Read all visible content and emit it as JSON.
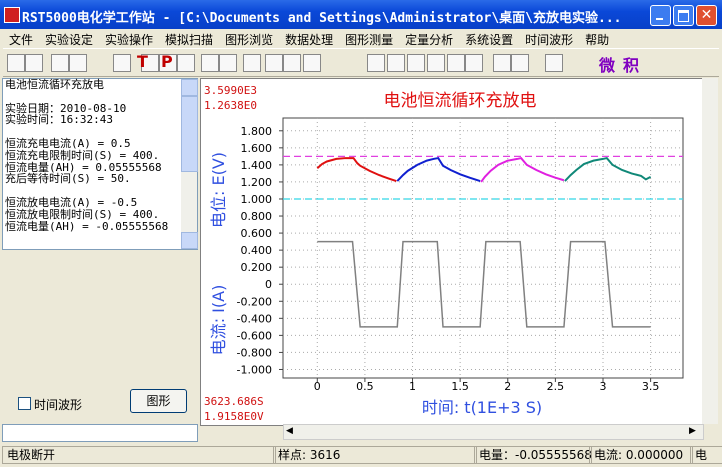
{
  "window": {
    "title": "RST5000电化学工作站 - [C:\\Documents and Settings\\Administrator\\桌面\\充放电实验..."
  },
  "menu": [
    "文件",
    "实验设定",
    "实验操作",
    "模拟扫描",
    "图形浏览",
    "数据处理",
    "图形测量",
    "定量分析",
    "系统设置",
    "时间波形",
    "帮助"
  ],
  "toolbar": {
    "labels": [
      "T",
      "P",
      "微",
      "积"
    ]
  },
  "panel": {
    "groups": [
      [
        "电池恒流循环充放电"
      ],
      [
        "实验日期：2010-08-10",
        "实验时间：16:32:43"
      ],
      [
        "恒流充电电流(A) = 0.5",
        "恒流充电限制时间(S) = 400.",
        "恒流电量(AH) = 0.05555568",
        "充后等待时间(S) = 50."
      ],
      [
        "恒流放电电流(A) = -0.5",
        "恒流放电限制时间(S) = 400.",
        "恒流电量(AH) = -0.05555568"
      ]
    ],
    "checkbox": "时间波形",
    "button": "图形"
  },
  "status": [
    "电极断开",
    "样点: 3616",
    "电量：-0.05555568",
    "电流: 0.000000",
    "电"
  ],
  "chart_data": {
    "type": "line",
    "title": "电池恒流循环充放电",
    "xlabel": "时间: t(1E+3 S)",
    "ylabel_top": "电位: E(V)",
    "ylabel_bottom": "电流: I(A)",
    "readouts": {
      "top": [
        "3.5990E3",
        "1.2638E0"
      ],
      "bottom": [
        "3623.686S",
        "1.9158E0V"
      ]
    },
    "xlim": [
      -0.36,
      3.84
    ],
    "ylim": [
      -1.1,
      1.95
    ],
    "xticks": [
      0,
      0.5,
      1,
      1.5,
      2,
      2.5,
      3,
      3.5
    ],
    "yticks": [
      {
        "value": 1.8,
        "label": "1.800"
      },
      {
        "value": 1.6,
        "label": "1.600"
      },
      {
        "value": 1.4,
        "label": "1.400"
      },
      {
        "value": 1.2,
        "label": "1.200"
      },
      {
        "value": 1,
        "label": "1.000"
      },
      {
        "value": 0.8,
        "label": "0.800"
      },
      {
        "value": 0.6,
        "label": "0.600"
      },
      {
        "value": 0.4,
        "label": "0.400"
      },
      {
        "value": 0.2,
        "label": "0.200"
      },
      0,
      {
        "value": -0.2,
        "label": "-0.200"
      },
      {
        "value": -0.4,
        "label": "-0.400"
      },
      {
        "value": -0.6,
        "label": "-0.600"
      },
      {
        "value": -0.8,
        "label": "-0.800"
      },
      {
        "value": -1,
        "label": "-1.000"
      }
    ],
    "grid": true,
    "hlines": [
      {
        "value": 1.5,
        "color": "#e040e0"
      },
      {
        "value": 1.0,
        "color": "#30d8e8"
      }
    ],
    "series": [
      {
        "color": "#808080",
        "x": [
          0,
          0.37,
          0.45,
          0.84,
          0.9,
          1.26,
          1.32,
          1.71,
          1.77,
          2.13,
          2.2,
          2.59,
          2.66,
          3.02,
          3.1,
          3.5
        ],
        "values": [
          0.5,
          0.5,
          -0.5,
          -0.5,
          0.5,
          0.5,
          -0.5,
          -0.5,
          0.5,
          0.5,
          -0.5,
          -0.5,
          0.5,
          0.5,
          -0.5,
          -0.5
        ]
      },
      {
        "color": "#e01010",
        "x": [
          0,
          0.05,
          0.1,
          0.2,
          0.3,
          0.38,
          0.42,
          0.45,
          0.55,
          0.65,
          0.75,
          0.83
        ],
        "values": [
          1.36,
          1.41,
          1.44,
          1.47,
          1.48,
          1.48,
          1.42,
          1.39,
          1.33,
          1.28,
          1.24,
          1.21
        ]
      },
      {
        "color": "#1020d0",
        "x": [
          0.84,
          0.9,
          0.95,
          1.05,
          1.15,
          1.22,
          1.27,
          1.32,
          1.4,
          1.5,
          1.6,
          1.71
        ],
        "values": [
          1.21,
          1.28,
          1.33,
          1.4,
          1.45,
          1.47,
          1.48,
          1.39,
          1.34,
          1.29,
          1.25,
          1.21
        ]
      },
      {
        "color": "#e020e0",
        "x": [
          1.72,
          1.76,
          1.82,
          1.9,
          2.0,
          2.1,
          2.14,
          2.2,
          2.3,
          2.4,
          2.5,
          2.59
        ],
        "values": [
          1.2,
          1.26,
          1.33,
          1.4,
          1.45,
          1.47,
          1.48,
          1.4,
          1.34,
          1.29,
          1.25,
          1.22
        ]
      },
      {
        "color": "#108878",
        "x": [
          2.6,
          2.66,
          2.72,
          2.8,
          2.9,
          3.0,
          3.04,
          3.1,
          3.2,
          3.3,
          3.4,
          3.45,
          3.5
        ],
        "values": [
          1.21,
          1.28,
          1.34,
          1.41,
          1.45,
          1.47,
          1.48,
          1.4,
          1.34,
          1.3,
          1.27,
          1.23,
          1.26
        ]
      }
    ]
  }
}
